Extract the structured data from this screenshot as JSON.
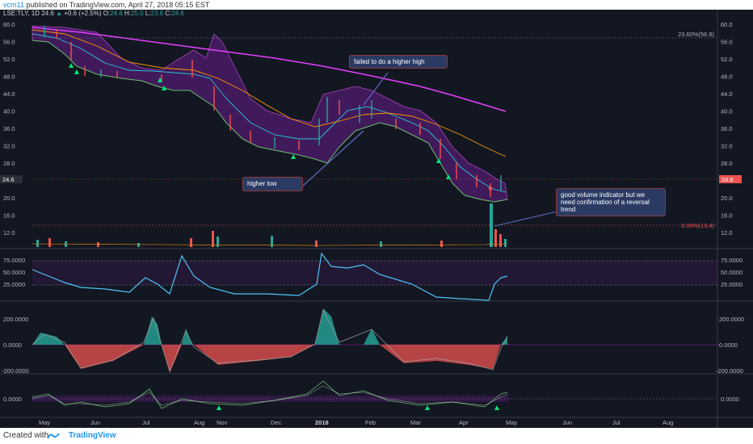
{
  "header": {
    "user": "vcm11",
    "published_text": " published on TradingView.com, April 27, 2018 05:15 EST"
  },
  "legend": {
    "symbol": "LSE:TLY, 1D",
    "last": "24.6",
    "change": "+0.6 (+2.5%)",
    "o_label": "O:",
    "o": "24.6",
    "h_label": "H:",
    "h": "25.0",
    "l_label": "L:",
    "l": "23.6",
    "c_label": "C:",
    "c": "24.6"
  },
  "price_axis": {
    "ticks": [
      "60.0",
      "56.0",
      "52.0",
      "48.0",
      "44.0",
      "40.0",
      "36.0",
      "32.0",
      "28.0",
      "24.0",
      "20.0",
      "16.0",
      "12.0"
    ],
    "current_price": "24.6"
  },
  "fib": {
    "upper_label": "23.60%(56.8)",
    "lower_label": "0.00%(13.4)"
  },
  "annotations": {
    "failed_high": "failed to do a higher high",
    "higher_low": "higher low",
    "volume_note": "good volume indicator but we need confirmation of a reversal trend"
  },
  "rsi_axis": {
    "ticks": [
      "75.0000",
      "50.0000",
      "25.0000"
    ]
  },
  "macd_axis": {
    "ticks": [
      "200.0000",
      "0.0000",
      "-200.0000"
    ]
  },
  "osc_axis": {
    "ticks": [
      "0.0000"
    ]
  },
  "time_axis": {
    "labels": [
      "May",
      "Jun",
      "Jul",
      "Aug",
      "Nov",
      "Dec",
      "2018",
      "Feb",
      "Mar",
      "Apr",
      "May",
      "Jun",
      "Jul",
      "Aug"
    ]
  },
  "footer": {
    "created_with": "Created with",
    "brand": "TradingView"
  },
  "colors": {
    "background": "#131722",
    "up": "#26a69a",
    "down": "#ef5350",
    "sma_long": "#e040fb",
    "sma_mid": "#ff9800",
    "bb_basis": "#26c6da",
    "bb_fill": "#7b1fa2",
    "rsi": "#4fc3f7",
    "annotation_box": "#2a3a63"
  }
}
